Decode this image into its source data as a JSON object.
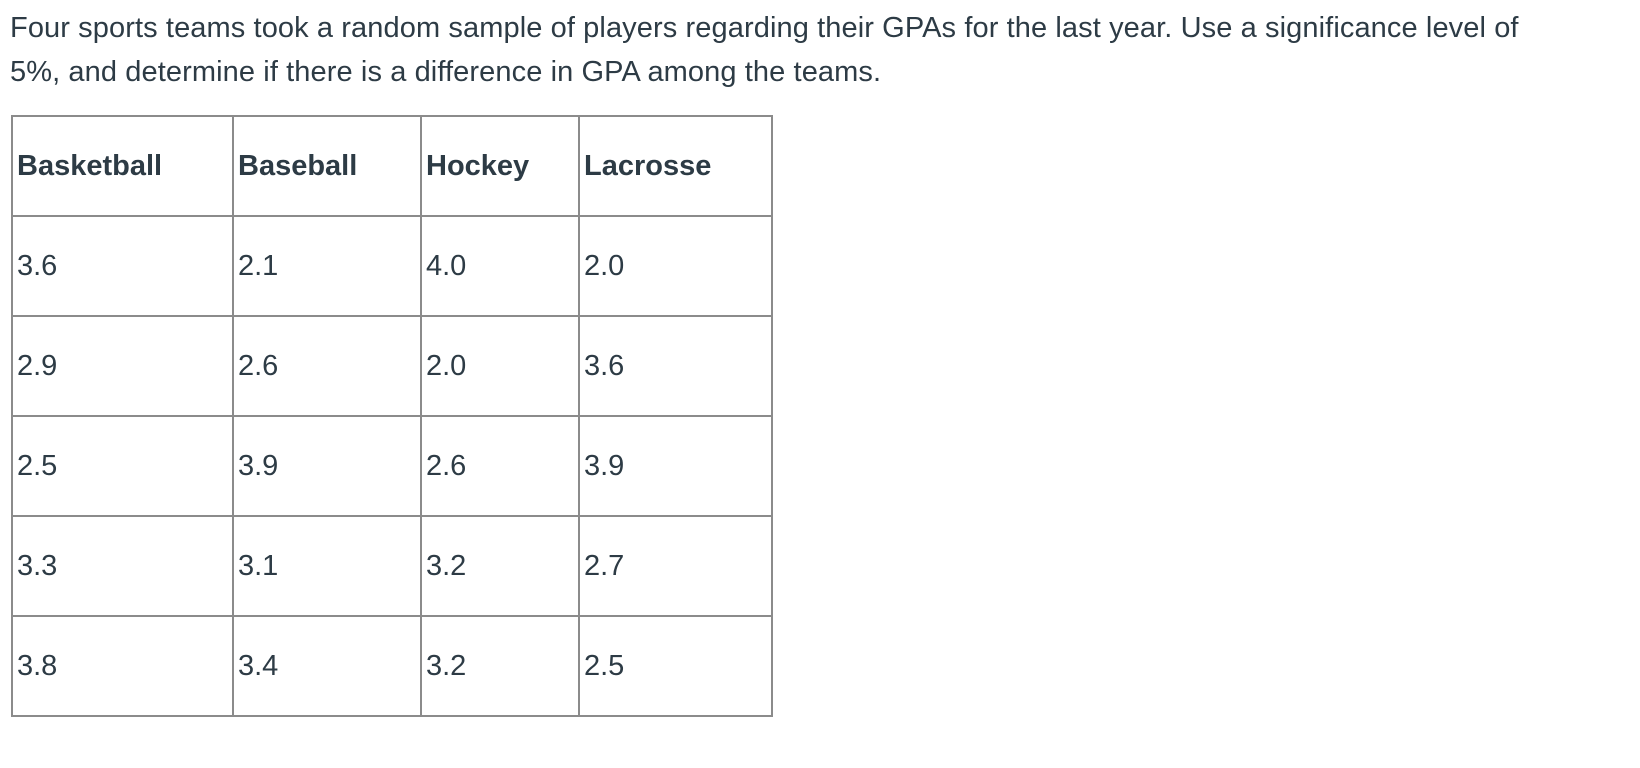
{
  "question": {
    "text_line1": "Four sports teams took a random sample of players regarding their GPAs for the last year. Use a significance level of",
    "text_line2": "5%, and determine if there is a difference in GPA among the teams.",
    "significance_level": "5%"
  },
  "chart_data": {
    "type": "table",
    "columns": [
      "Basketball",
      "Baseball",
      "Hockey",
      "Lacrosse"
    ],
    "rows": [
      [
        "3.6",
        "2.1",
        "4.0",
        "2.0"
      ],
      [
        "2.9",
        "2.6",
        "2.0",
        "3.6"
      ],
      [
        "2.5",
        "3.9",
        "2.6",
        "3.9"
      ],
      [
        "3.3",
        "3.1",
        "3.2",
        "2.7"
      ],
      [
        "3.8",
        "3.4",
        "3.2",
        "2.5"
      ]
    ]
  },
  "colors": {
    "text": "#2d3b45",
    "table_border": "#8b8b8b",
    "background": "#ffffff"
  }
}
